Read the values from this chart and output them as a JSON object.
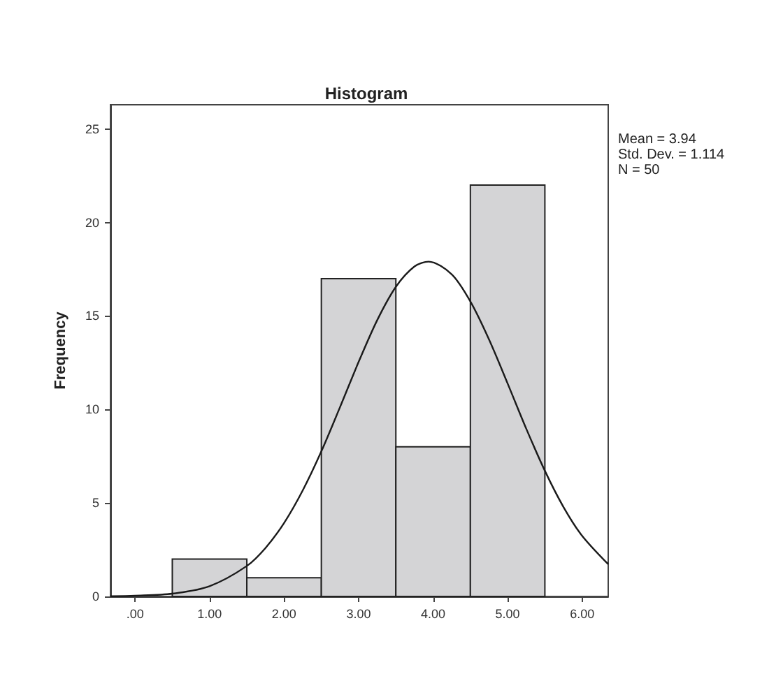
{
  "chart_data": {
    "type": "histogram",
    "title": "Histogram",
    "ylabel": "Frequency",
    "annotations": [
      "Mean = 3.94",
      "Std. Dev. = 1.114",
      "N = 50"
    ],
    "bins": [
      0.5,
      1.5,
      2.5,
      3.5,
      4.5,
      5.5
    ],
    "series": [
      {
        "color": "#d4d4d6",
        "values": [
          2,
          1,
          17,
          8,
          22
        ]
      },
      {
        "type": "line",
        "color": "#1a1a1a",
        "x": [
          -0.33,
          0,
          0.5,
          1,
          1.5,
          1.75,
          2,
          2.25,
          2.5,
          2.75,
          3,
          3.25,
          3.5,
          3.75,
          3.94,
          4.25,
          4.5,
          4.75,
          5,
          5.25,
          5.5,
          5.75,
          6,
          6.35
        ],
        "values": [
          0.01,
          0.04,
          0.15,
          0.55,
          1.63,
          2.59,
          3.93,
          5.67,
          7.76,
          10.12,
          12.54,
          14.78,
          16.56,
          17.65,
          17.91,
          17.23,
          15.78,
          13.75,
          11.39,
          8.97,
          6.72,
          4.78,
          3.24,
          1.72
        ]
      }
    ],
    "marker": "none",
    "xlim": [
      -0.33,
      6.35
    ],
    "xticks": [
      {
        "value": 0,
        "label": ".00"
      },
      {
        "value": 1,
        "label": "1.00"
      },
      {
        "value": 2,
        "label": "2.00"
      },
      {
        "value": 3,
        "label": "3.00"
      },
      {
        "value": 4,
        "label": "4.00"
      },
      {
        "value": 5,
        "label": "5.00"
      },
      {
        "value": 6,
        "label": "6.00"
      }
    ],
    "ylim": [
      0,
      26.3
    ],
    "yticks": [
      0,
      5,
      10,
      15,
      20,
      25
    ]
  }
}
